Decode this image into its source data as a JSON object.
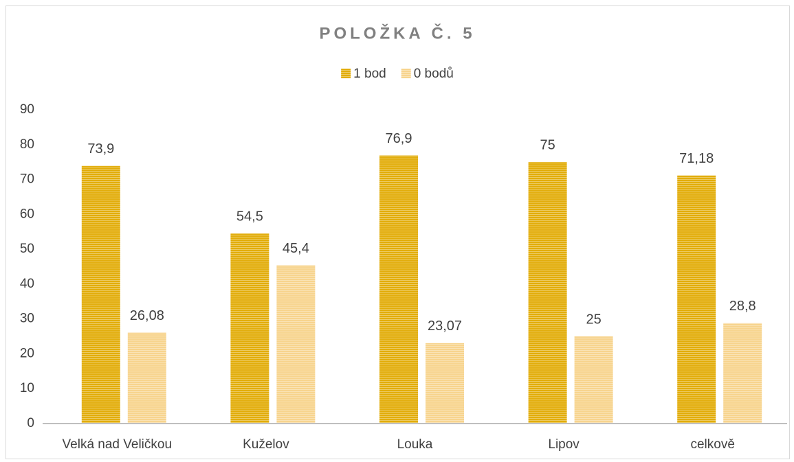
{
  "chart_data": {
    "type": "bar",
    "title": "POLOŽKA Č. 5",
    "categories": [
      "Velká nad Veličkou",
      "Kuželov",
      "Louka",
      "Lipov",
      "celkově"
    ],
    "series": [
      {
        "name": "1 bod",
        "color": "#e2ad0b",
        "values": [
          73.9,
          54.5,
          76.9,
          75,
          71.18
        ],
        "value_labels": [
          "73,9",
          "54,5",
          "76,9",
          "75",
          "71,18"
        ]
      },
      {
        "name": "0 bodů",
        "color": "#f7d48e",
        "values": [
          26.08,
          45.4,
          23.07,
          25,
          28.8
        ],
        "value_labels": [
          "26,08",
          "45,4",
          "23,07",
          "25",
          "28,8"
        ]
      }
    ],
    "ylim": [
      0,
      90
    ],
    "yticks": [
      0,
      10,
      20,
      30,
      40,
      50,
      60,
      70,
      80,
      90
    ],
    "grid": false,
    "legend": "top"
  }
}
